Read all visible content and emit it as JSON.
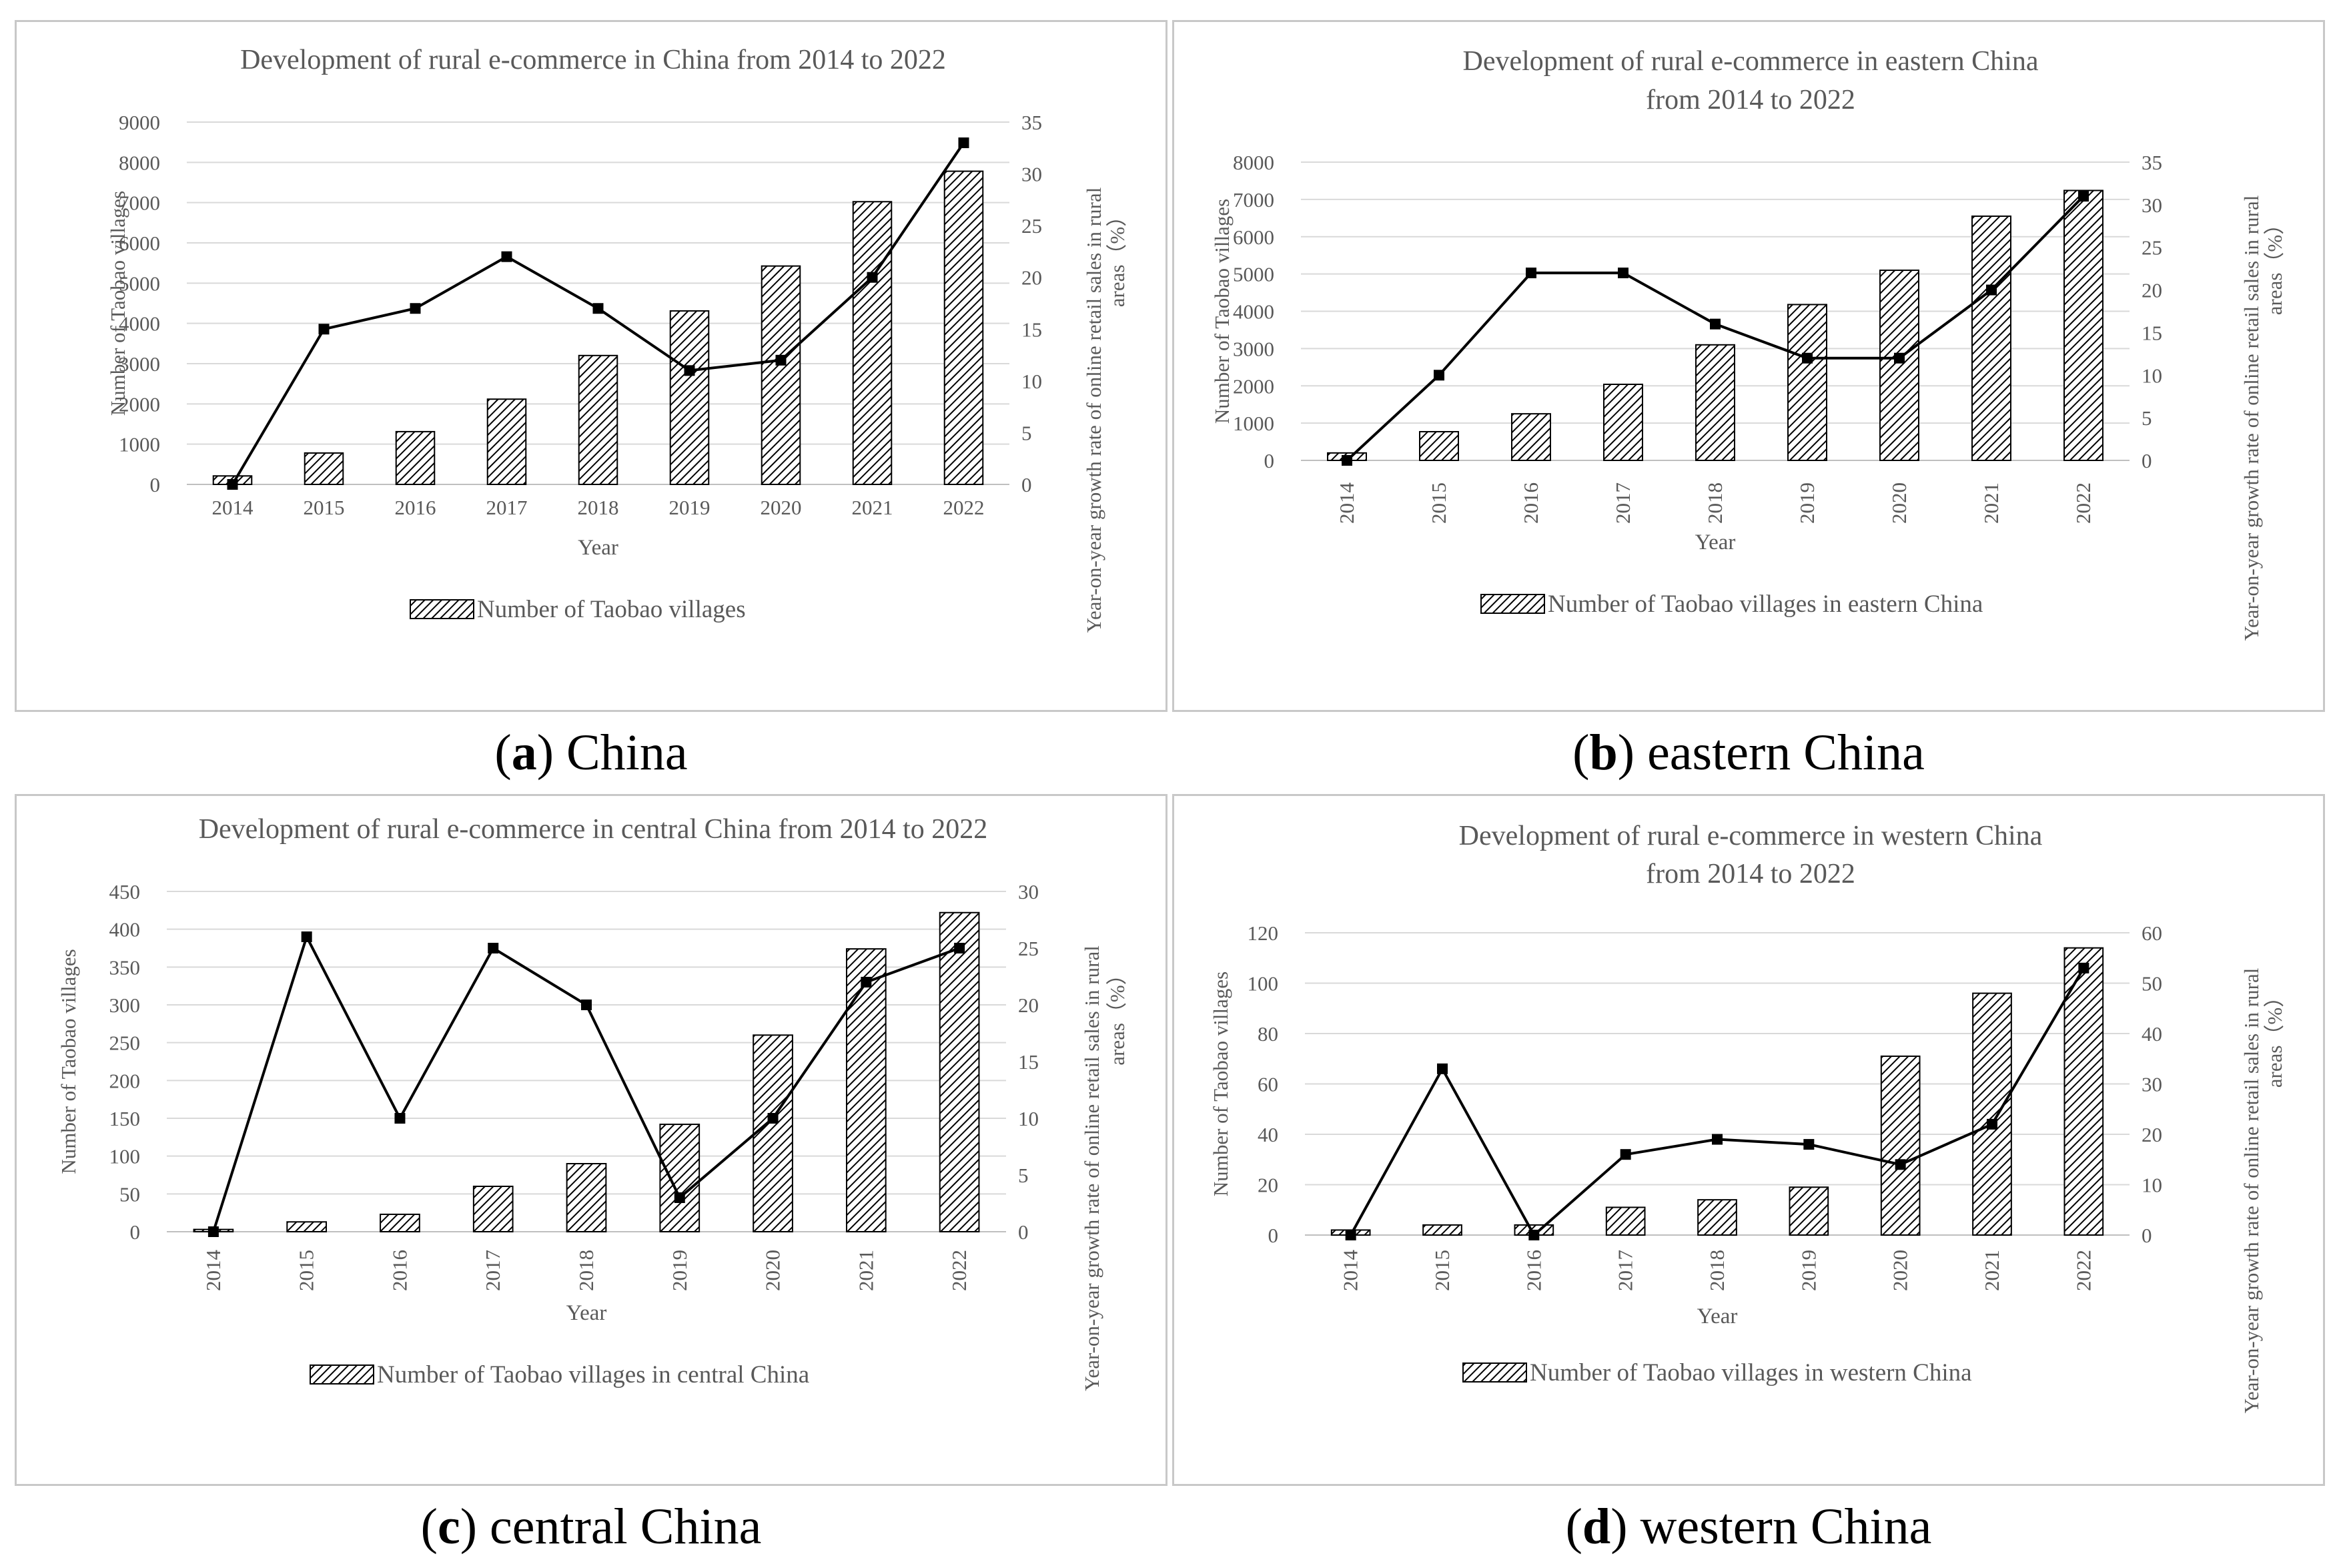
{
  "colors": {
    "frame": "#c8c8c8",
    "grid": "#d9d9d9",
    "text": "#595959",
    "line": "#000000",
    "bar_stroke": "#000000"
  },
  "chart_data": [
    {
      "type": "bar+line",
      "panel_letter": "a",
      "caption": "China",
      "title": [
        "Development of rural e-commerce in China from 2014 to 2022"
      ],
      "xlabel": "Year",
      "ylabel": "Number of Taobao villages",
      "y2label": [
        "Year-on-year growth rate of online retail sales in rural",
        "areas（%）"
      ],
      "categories": [
        "2014",
        "2015",
        "2016",
        "2017",
        "2018",
        "2019",
        "2020",
        "2021",
        "2022"
      ],
      "bars": {
        "name": "Number of Taobao villages",
        "values": [
          211,
          780,
          1311,
          2118,
          3202,
          4310,
          5425,
          7023,
          7780
        ]
      },
      "line": {
        "values": [
          0,
          15,
          17,
          22,
          17,
          11,
          12,
          20,
          33
        ]
      },
      "ylim": [
        0,
        9000
      ],
      "yticks": [
        "0",
        "1000",
        "2000",
        "3000",
        "4000",
        "5000",
        "6000",
        "7000",
        "8000",
        "9000"
      ],
      "y2lim": [
        0,
        35
      ],
      "y2ticks": [
        "0",
        "5",
        "10",
        "15",
        "20",
        "25",
        "30",
        "35"
      ],
      "rotated_xticks": false
    },
    {
      "type": "bar+line",
      "panel_letter": "b",
      "caption": "eastern China",
      "title": [
        "Development of rural e-commerce in eastern China",
        "from 2014 to 2022"
      ],
      "xlabel": "Year",
      "ylabel": "Number of Taobao villages",
      "y2label": [
        "Year-on-year growth rate of online retail sales in rural",
        "areas（%）"
      ],
      "categories": [
        "2014",
        "2015",
        "2016",
        "2017",
        "2018",
        "2019",
        "2020",
        "2021",
        "2022"
      ],
      "bars": {
        "name": "Number of Taobao villages in eastern China",
        "values": [
          200,
          770,
          1250,
          2040,
          3100,
          4180,
          5100,
          6550,
          7240
        ]
      },
      "line": {
        "values": [
          0,
          10,
          22,
          22,
          16,
          12,
          12,
          20,
          31
        ]
      },
      "ylim": [
        0,
        8000
      ],
      "yticks": [
        "0",
        "1000",
        "2000",
        "3000",
        "4000",
        "5000",
        "6000",
        "7000",
        "8000"
      ],
      "y2lim": [
        0,
        35
      ],
      "y2ticks": [
        "0",
        "5",
        "10",
        "15",
        "20",
        "25",
        "30",
        "35"
      ],
      "rotated_xticks": true
    },
    {
      "type": "bar+line",
      "panel_letter": "c",
      "caption": "central China",
      "title": [
        "Development of rural e-commerce in central China from 2014 to 2022"
      ],
      "xlabel": "Year",
      "ylabel": "Number of Taobao villages",
      "y2label": [
        "Year-on-year growth rate of online retail sales in rural",
        "areas（%）"
      ],
      "categories": [
        "2014",
        "2015",
        "2016",
        "2017",
        "2018",
        "2019",
        "2020",
        "2021",
        "2022"
      ],
      "bars": {
        "name": "Number of Taobao villages in central China",
        "values": [
          3,
          13,
          23,
          60,
          90,
          142,
          260,
          374,
          422
        ]
      },
      "line": {
        "values": [
          0,
          26,
          10,
          25,
          20,
          3,
          10,
          22,
          25
        ]
      },
      "ylim": [
        0,
        450
      ],
      "yticks": [
        "0",
        "50",
        "100",
        "150",
        "200",
        "250",
        "300",
        "350",
        "400",
        "450"
      ],
      "y2lim": [
        0,
        30
      ],
      "y2ticks": [
        "0",
        "5",
        "10",
        "15",
        "20",
        "25",
        "30"
      ],
      "rotated_xticks": true
    },
    {
      "type": "bar+line",
      "panel_letter": "d",
      "caption": "western China",
      "title": [
        "Development of rural e-commerce in western China",
        "from 2014 to 2022"
      ],
      "xlabel": "Year",
      "ylabel": "Number of Taobao villages",
      "y2label": [
        "Year-on-year growth rate of online retail sales in rural",
        "areas（%）"
      ],
      "categories": [
        "2014",
        "2015",
        "2016",
        "2017",
        "2018",
        "2019",
        "2020",
        "2021",
        "2022"
      ],
      "bars": {
        "name": "Number of Taobao villages in western China",
        "values": [
          2,
          4,
          4,
          11,
          14,
          19,
          71,
          96,
          114
        ]
      },
      "line": {
        "values": [
          0,
          33,
          0,
          16,
          19,
          18,
          14,
          22,
          53
        ]
      },
      "ylim": [
        0,
        120
      ],
      "yticks": [
        "0",
        "20",
        "40",
        "60",
        "80",
        "100",
        "120"
      ],
      "y2lim": [
        0,
        60
      ],
      "y2ticks": [
        "0",
        "10",
        "20",
        "30",
        "40",
        "50",
        "60"
      ],
      "rotated_xticks": true
    }
  ]
}
